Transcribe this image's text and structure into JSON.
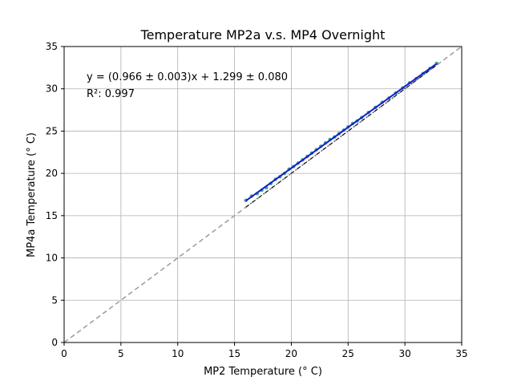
{
  "chart_data": {
    "type": "scatter",
    "title": "Temperature MP2a v.s. MP4 Overnight",
    "xlabel": "MP2 Temperature (° C)",
    "ylabel": "MP4a Temperature (° C)",
    "xlim": [
      0,
      35
    ],
    "ylim": [
      0,
      35
    ],
    "xticks": [
      0,
      5,
      10,
      15,
      20,
      25,
      30,
      35
    ],
    "yticks": [
      0,
      5,
      10,
      15,
      20,
      25,
      30,
      35
    ],
    "grid": true,
    "annotations": {
      "equation": "y = (0.966 ± 0.003)x + 1.299 ± 0.080",
      "r2": "R²: 0.997"
    },
    "fit": {
      "slope": 0.966,
      "intercept": 1.299,
      "x_range": [
        16.0,
        32.8
      ]
    },
    "reference_line": {
      "x_range": [
        0,
        35
      ],
      "y_range": [
        0,
        35
      ],
      "style": "dashed",
      "color": "#a0a0a0"
    },
    "secondary_line": {
      "x_range": [
        16.0,
        32.8
      ],
      "y_range": [
        16.0,
        32.8
      ],
      "style": "dashdot",
      "color": "#000000"
    },
    "points": {
      "x": [
        16.0,
        16.5,
        17.0,
        17.4,
        17.8,
        18.2,
        18.6,
        19.0,
        19.4,
        19.8,
        20.2,
        20.6,
        21.0,
        21.4,
        21.8,
        22.2,
        22.6,
        23.0,
        23.4,
        23.8,
        24.2,
        24.6,
        25.0,
        25.4,
        25.8,
        26.2,
        26.8,
        27.4,
        28.0,
        28.6,
        29.2,
        29.8,
        30.4,
        31.0,
        31.6,
        32.2,
        32.8
      ],
      "y": [
        16.8,
        17.3,
        17.6,
        18.0,
        18.3,
        18.8,
        19.3,
        19.6,
        20.0,
        20.5,
        20.8,
        21.2,
        21.6,
        22.0,
        22.4,
        22.8,
        23.2,
        23.6,
        24.0,
        24.3,
        24.7,
        25.1,
        25.5,
        25.9,
        26.2,
        26.6,
        27.2,
        27.8,
        28.4,
        28.9,
        29.5,
        30.1,
        30.7,
        31.2,
        31.8,
        32.4,
        33.0
      ]
    },
    "colors": {
      "points": "#1f9f8f",
      "fit_line": "#1a1acc",
      "grid": "#b0b0b0"
    }
  }
}
